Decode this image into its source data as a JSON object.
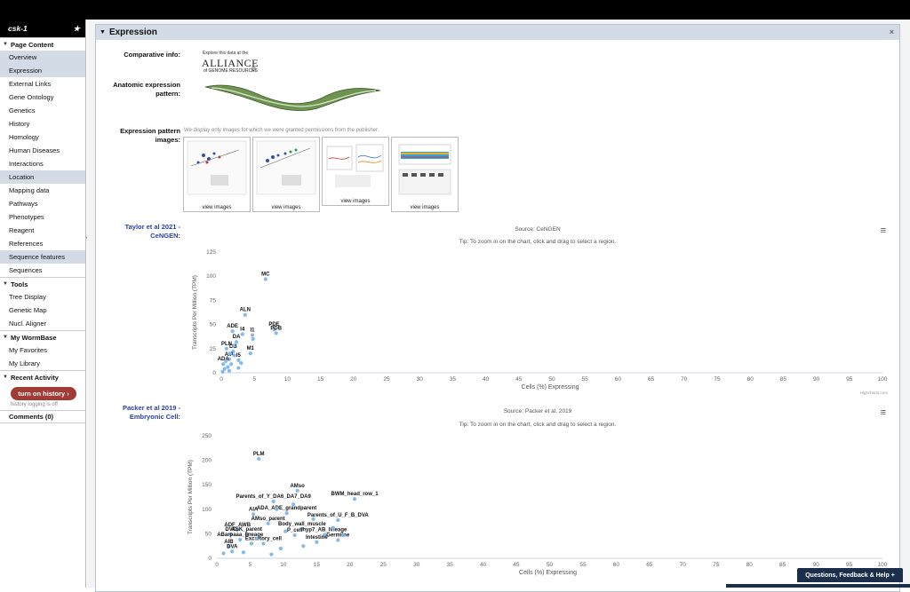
{
  "sidebar": {
    "title": "csk-1",
    "sections": [
      {
        "label": "Page Content",
        "items": [
          {
            "label": "Overview",
            "hl": true
          },
          {
            "label": "Expression",
            "hl": true
          },
          {
            "label": "External Links"
          },
          {
            "label": "Gene Ontology"
          },
          {
            "label": "Genetics"
          },
          {
            "label": "History"
          },
          {
            "label": "Homology"
          },
          {
            "label": "Human Diseases"
          },
          {
            "label": "Interactions"
          },
          {
            "label": "Location",
            "hl": true
          },
          {
            "label": "Mapping data"
          },
          {
            "label": "Pathways"
          },
          {
            "label": "Phenotypes"
          },
          {
            "label": "Reagent"
          },
          {
            "label": "References"
          },
          {
            "label": "Sequence features",
            "hl": true
          },
          {
            "label": "Sequences"
          }
        ]
      },
      {
        "label": "Tools",
        "items": [
          {
            "label": "Tree Display"
          },
          {
            "label": "Genetic Map"
          },
          {
            "label": "Nucl. Aligner"
          }
        ]
      },
      {
        "label": "My WormBase",
        "items": [
          {
            "label": "My Favorites"
          },
          {
            "label": "My Library"
          }
        ]
      },
      {
        "label": "Recent Activity",
        "items": []
      }
    ],
    "history_button": "turn on history ›",
    "history_note": "history logging is off",
    "comments": "Comments (0)"
  },
  "panel": {
    "title": "Expression",
    "comparative_label": "Comparative info:",
    "alliance_note": "Explore this data at the",
    "alliance_logo": "ALLIANCE",
    "alliance_sub": "of GENOME RESOURCES",
    "anatomic_label": "Anatomic expression pattern:",
    "images_label": "Expression pattern images:",
    "images_note": "We display only images for which we were granted permissions from the publisher.",
    "thumb_caption": "view images"
  },
  "chart_data": [
    {
      "type": "scatter",
      "section_label": "Taylor et al 2021 - CeNGEN:",
      "source": "Source: CeNGEN",
      "tip": "Tip: To zoom in on the chart, click and drag to select a region.",
      "xlabel": "Cells (%) Expressing",
      "ylabel": "Transcripts Per Million (TPM)",
      "xlim": [
        0,
        100
      ],
      "ylim": [
        0,
        125
      ],
      "xticks": [
        0,
        5,
        10,
        15,
        20,
        25,
        30,
        35,
        40,
        45,
        50,
        55,
        60,
        65,
        70,
        75,
        80,
        85,
        90,
        95,
        100
      ],
      "yticks": [
        0,
        25,
        50,
        75,
        100,
        125
      ],
      "credit": "Highcharts.com",
      "points": [
        {
          "label": "MC",
          "x": 6.7,
          "y": 97
        },
        {
          "label": "ALN",
          "x": 3.6,
          "y": 60
        },
        {
          "label": "PDE",
          "x": 8.0,
          "y": 45
        },
        {
          "label": "PDB",
          "x": 8.3,
          "y": 41
        },
        {
          "label": "ADE",
          "x": 1.7,
          "y": 43
        },
        {
          "label": "I4",
          "x": 3.2,
          "y": 40
        },
        {
          "label": "I1",
          "x": 4.7,
          "y": 39
        },
        {
          "label": "DA",
          "x": 2.3,
          "y": 32
        },
        {
          "label": "PLN",
          "x": 0.8,
          "y": 25
        },
        {
          "label": "DB",
          "x": 1.8,
          "y": 22
        },
        {
          "label": "M1",
          "x": 4.4,
          "y": 20
        },
        {
          "label": "AIA",
          "x": 1.2,
          "y": 14
        },
        {
          "label": "I5",
          "x": 2.6,
          "y": 13
        },
        {
          "label": "ADA",
          "x": 0.3,
          "y": 9
        },
        {
          "label": "",
          "x": 4.8,
          "y": 35
        },
        {
          "label": "",
          "x": 1.0,
          "y": 6
        },
        {
          "label": "",
          "x": 0.5,
          "y": 4
        },
        {
          "label": "",
          "x": 1.5,
          "y": 9
        },
        {
          "label": "",
          "x": 2.0,
          "y": 18
        },
        {
          "label": "",
          "x": 0.7,
          "y": 12
        },
        {
          "label": "",
          "x": 1.2,
          "y": 2
        },
        {
          "label": "",
          "x": 2.6,
          "y": 5
        },
        {
          "label": "",
          "x": 0.2,
          "y": 1
        },
        {
          "label": "",
          "x": 3.0,
          "y": 10
        },
        {
          "label": "",
          "x": 1.9,
          "y": 28
        },
        {
          "label": "",
          "x": 1.3,
          "y": 20
        }
      ]
    },
    {
      "type": "scatter",
      "section_label": "Packer et al 2019 - Embryonic Cell:",
      "source": "Source: Packer et al. 2019",
      "tip": "Tip: To zoom in on the chart, click and drag to select a region.",
      "xlabel": "Cells (%) Expressing",
      "ylabel": "Transcripts Per Million (TPM)",
      "xlim": [
        0,
        100
      ],
      "ylim": [
        0,
        250
      ],
      "xticks": [
        0,
        5,
        10,
        15,
        20,
        25,
        30,
        35,
        40,
        45,
        50,
        55,
        60,
        65,
        70,
        75,
        80,
        85,
        90,
        95,
        100
      ],
      "yticks": [
        0,
        50,
        100,
        150,
        200,
        250
      ],
      "points": [
        {
          "label": "PLM",
          "x": 6.3,
          "y": 203
        },
        {
          "label": "AMso",
          "x": 12.1,
          "y": 138
        },
        {
          "label": "BWM_head_row_1",
          "x": 20.7,
          "y": 121
        },
        {
          "label": "Parents_of_Y_DA6_DA7_DA9",
          "x": 8.5,
          "y": 116
        },
        {
          "label": "AIA",
          "x": 5.5,
          "y": 90
        },
        {
          "label": "ADA_ADE_grandparent",
          "x": 10.5,
          "y": 92
        },
        {
          "label": "Parents_of_U_F_B_DVA",
          "x": 18.2,
          "y": 78
        },
        {
          "label": "AMso_parent",
          "x": 7.7,
          "y": 71
        },
        {
          "label": "ADF_AWB",
          "x": 3.1,
          "y": 58
        },
        {
          "label": "Body_wall_muscle",
          "x": 12.8,
          "y": 60
        },
        {
          "label": "DVC",
          "x": 2.1,
          "y": 49
        },
        {
          "label": "ASK_parent",
          "x": 4.5,
          "y": 49
        },
        {
          "label": "P_cell",
          "x": 11.7,
          "y": 47
        },
        {
          "label": "hyp7_AB_lineage",
          "x": 16.2,
          "y": 48
        },
        {
          "label": "ABarpaaa_lineage",
          "x": 3.5,
          "y": 38
        },
        {
          "label": "Germline",
          "x": 18.2,
          "y": 37
        },
        {
          "label": "Excretory_cell",
          "x": 7.0,
          "y": 30
        },
        {
          "label": "Intestine",
          "x": 15.0,
          "y": 33
        },
        {
          "label": "AIB",
          "x": 1.8,
          "y": 24
        },
        {
          "label": "DVA",
          "x": 2.3,
          "y": 14
        },
        {
          "label": "",
          "x": 9.0,
          "y": 100
        },
        {
          "label": "",
          "x": 11.5,
          "y": 110
        },
        {
          "label": "",
          "x": 14.5,
          "y": 80
        },
        {
          "label": "",
          "x": 17.5,
          "y": 62
        },
        {
          "label": "",
          "x": 19.0,
          "y": 47
        },
        {
          "label": "",
          "x": 9.6,
          "y": 20
        },
        {
          "label": "",
          "x": 1.0,
          "y": 10
        },
        {
          "label": "",
          "x": 4.0,
          "y": 12
        },
        {
          "label": "",
          "x": 6.0,
          "y": 40
        },
        {
          "label": "",
          "x": 13.0,
          "y": 25
        },
        {
          "label": "",
          "x": 8.2,
          "y": 8
        },
        {
          "label": "",
          "x": 10.3,
          "y": 55
        },
        {
          "label": "",
          "x": 5.2,
          "y": 30
        }
      ]
    }
  ],
  "feedback": {
    "label": "Questions, Feedback & Help  +"
  }
}
